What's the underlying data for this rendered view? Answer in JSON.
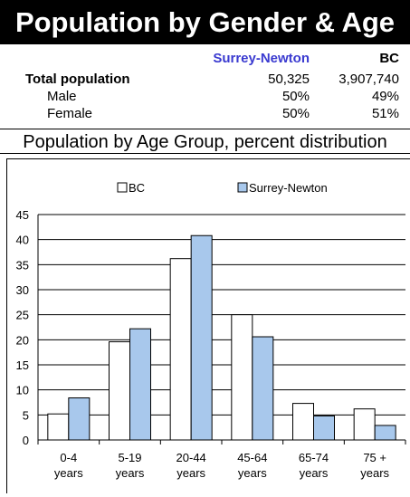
{
  "header": {
    "title": "Population by Gender & Age"
  },
  "stats": {
    "col_surrey": "Surrey-Newton",
    "col_bc": "BC",
    "rows": [
      {
        "label": "Total population",
        "surrey": "50,325",
        "bc": "3,907,740"
      },
      {
        "label": "Male",
        "surrey": "50%",
        "bc": "49%"
      },
      {
        "label": "Female",
        "surrey": "50%",
        "bc": "51%"
      }
    ]
  },
  "subtitle": "Population by Age Group, percent distribution",
  "colors": {
    "bc": "#ffffff",
    "surrey": "#a8c8ec",
    "title_bg": "#000000",
    "header_accent": "#3a3ad0"
  },
  "chart_data": {
    "type": "bar",
    "categories": [
      "0-4 years",
      "5-19 years",
      "20-44 years",
      "45-64 years",
      "65-74 years",
      "75 + years"
    ],
    "category_lines": [
      [
        "0-4",
        "years"
      ],
      [
        "5-19",
        "years"
      ],
      [
        "20-44",
        "years"
      ],
      [
        "45-64",
        "years"
      ],
      [
        "65-74",
        "years"
      ],
      [
        "75 +",
        "years"
      ]
    ],
    "series": [
      {
        "name": "BC",
        "values": [
          5.2,
          19.6,
          36.2,
          25.0,
          7.3,
          6.2
        ]
      },
      {
        "name": "Surrey-Newton",
        "values": [
          8.4,
          22.2,
          40.8,
          20.6,
          4.8,
          2.9
        ]
      }
    ],
    "ylim": [
      0,
      45
    ],
    "yticks": [
      0,
      5,
      10,
      15,
      20,
      25,
      30,
      35,
      40,
      45
    ],
    "legend": "top",
    "grid": true
  }
}
